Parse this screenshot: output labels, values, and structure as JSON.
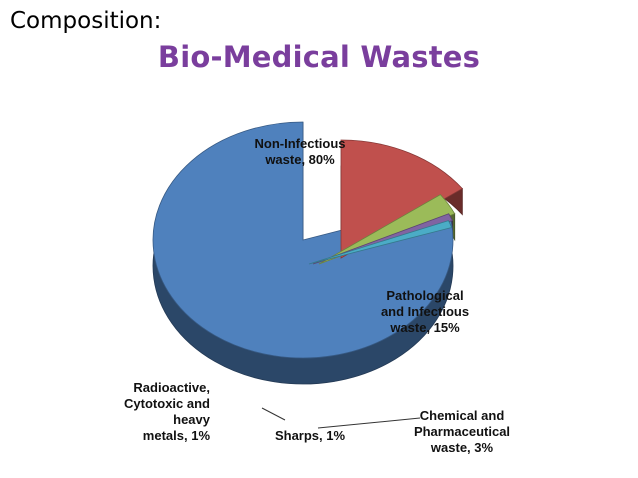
{
  "heading": "Composition:",
  "chart_data": {
    "type": "pie",
    "title": "Bio-Medical Wastes",
    "slices": [
      {
        "label": [
          "Non-Infectious",
          "waste, 80%"
        ],
        "value": 80,
        "color": "#4f81bd"
      },
      {
        "label": [
          "Pathological",
          "and Infectious",
          "waste, 15%"
        ],
        "value": 15,
        "color": "#c0504d"
      },
      {
        "label": [
          "Chemical and",
          "Pharmaceutical",
          "waste, 3%"
        ],
        "value": 3,
        "color": "#9bbb59"
      },
      {
        "label": [
          "Sharps, 1%"
        ],
        "value": 1,
        "color": "#8064a2"
      },
      {
        "label": [
          "Radioactive,",
          "Cytotoxic and",
          "heavy",
          "metals, 1%"
        ],
        "value": 1,
        "color": "#4bacc6"
      }
    ]
  }
}
